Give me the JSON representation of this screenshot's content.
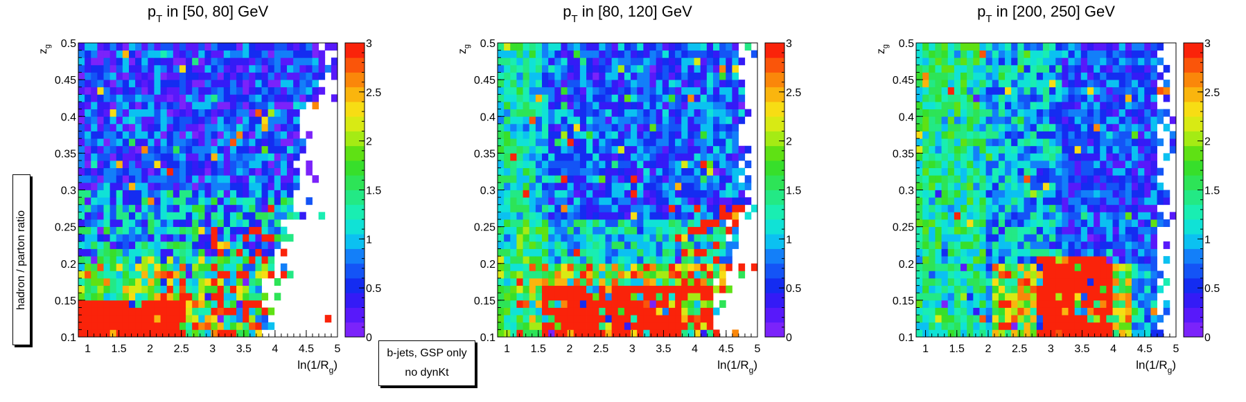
{
  "side_label": "hadron / parton ratio",
  "note": {
    "line1": "b-jets, GSP only",
    "line2": "no dynKt"
  },
  "chart_data": [
    {
      "type": "heatmap",
      "title_main": "p",
      "title_sub": "T",
      "title_rest": " in [50, 80] GeV",
      "xlabel_main": "ln(1/R",
      "xlabel_sub": "g",
      "xlabel_close": ")",
      "ylabel_main": "z",
      "ylabel_sub": "g",
      "xlim": [
        0.85,
        5.0
      ],
      "ylim": [
        0.1,
        0.5
      ],
      "xticks": [
        "1",
        "1.5",
        "2",
        "2.5",
        "3",
        "3.5",
        "4",
        "4.5",
        "5"
      ],
      "yticks": [
        "0.1",
        "0.15",
        "0.2",
        "0.25",
        "0.3",
        "0.35",
        "0.4",
        "0.45",
        "0.5"
      ],
      "z_range": [
        0,
        3
      ],
      "z_ticks": [
        "0",
        "0.5",
        "1",
        "1.5",
        "2",
        "2.5",
        "3"
      ],
      "x_bins": 41,
      "y_bins": 40,
      "occupancy_edge": [
        4.1,
        4.3,
        4.6,
        4.7,
        5.0
      ],
      "low_z_band_top": 0.215,
      "red_block_top": 0.15,
      "red_block_xmax": 2.6,
      "description_of_pattern": "red at small z_g, green/cyan band around 0.18-0.25, blue/violet above"
    },
    {
      "type": "heatmap",
      "title_main": "p",
      "title_sub": "T",
      "title_rest": " in [80, 120] GeV",
      "xlabel_main": "ln(1/R",
      "xlabel_sub": "g",
      "xlabel_close": ")",
      "ylabel_main": "z",
      "ylabel_sub": "g",
      "xlim": [
        0.85,
        5.0
      ],
      "ylim": [
        0.1,
        0.5
      ],
      "xticks": [
        "1",
        "1.5",
        "2",
        "2.5",
        "3",
        "3.5",
        "4",
        "4.5",
        "5"
      ],
      "yticks": [
        "0.1",
        "0.15",
        "0.2",
        "0.25",
        "0.3",
        "0.35",
        "0.4",
        "0.45",
        "0.5"
      ],
      "z_range": [
        0,
        3
      ],
      "z_ticks": [
        "0",
        "0.5",
        "1",
        "1.5",
        "2",
        "2.5",
        "3"
      ],
      "x_bins": 41,
      "y_bins": 40,
      "occupancy_edge": [
        4.6,
        4.8,
        5.0,
        5.0,
        5.0
      ],
      "low_z_band_top": 0.2,
      "red_block_top": 0.17,
      "red_block_xmax": 3.8,
      "description_of_pattern": "cyan/teal left, blue/violet upper middle, red at small z_g"
    },
    {
      "type": "heatmap",
      "title_main": "p",
      "title_sub": "T",
      "title_rest": " in [200, 250] GeV",
      "xlabel_main": "ln(1/R",
      "xlabel_sub": "g",
      "xlabel_close": ")",
      "ylabel_main": "z",
      "ylabel_sub": "g",
      "xlim": [
        0.85,
        5.0
      ],
      "ylim": [
        0.1,
        0.5
      ],
      "xticks": [
        "1",
        "1.5",
        "2",
        "2.5",
        "3",
        "3.5",
        "4",
        "4.5",
        "5"
      ],
      "yticks": [
        "0.1",
        "0.15",
        "0.2",
        "0.25",
        "0.3",
        "0.35",
        "0.4",
        "0.45",
        "0.5"
      ],
      "z_range": [
        0,
        3
      ],
      "z_ticks": [
        "0",
        "0.5",
        "1",
        "1.5",
        "2",
        "2.5",
        "3"
      ],
      "x_bins": 41,
      "y_bins": 40,
      "occupancy_edge": [
        5.0,
        5.0,
        5.0,
        5.0,
        5.0
      ],
      "low_z_band_top": 0.19,
      "red_block_top": 0.21,
      "red_block_xmax": 4.0,
      "description_of_pattern": "green/cyan left, blue upper right, red block at small z_g and large ln(1/R_g)"
    }
  ]
}
